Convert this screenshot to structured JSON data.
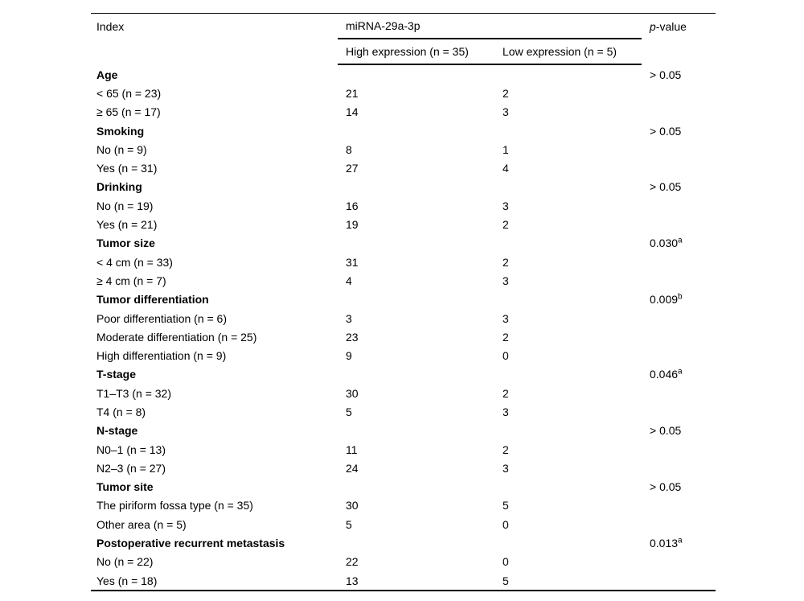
{
  "colors": {
    "background": "#ffffff",
    "text": "#000000",
    "rule": "#000000"
  },
  "table": {
    "header": {
      "index": "Index",
      "group": "miRNA-29a-3p",
      "subcols": {
        "high": "High expression (n = 35)",
        "low": "Low expression (n = 5)"
      },
      "p_italic": "p",
      "p_rest": "-value"
    },
    "rows": [
      {
        "label": "Age",
        "bold": true,
        "high": "",
        "low": "",
        "p": "> 0.05",
        "sup": ""
      },
      {
        "label": "< 65 (n = 23)",
        "bold": false,
        "high": "21",
        "low": "2",
        "p": "",
        "sup": ""
      },
      {
        "label": "≥ 65 (n = 17)",
        "bold": false,
        "high": "14",
        "low": "3",
        "p": "",
        "sup": ""
      },
      {
        "label": "Smoking",
        "bold": true,
        "high": "",
        "low": "",
        "p": "> 0.05",
        "sup": ""
      },
      {
        "label": "No (n = 9)",
        "bold": false,
        "high": "8",
        "low": "1",
        "p": "",
        "sup": ""
      },
      {
        "label": "Yes (n = 31)",
        "bold": false,
        "high": "27",
        "low": "4",
        "p": "",
        "sup": ""
      },
      {
        "label": "Drinking",
        "bold": true,
        "high": "",
        "low": "",
        "p": "> 0.05",
        "sup": ""
      },
      {
        "label": "No (n = 19)",
        "bold": false,
        "high": "16",
        "low": "3",
        "p": "",
        "sup": ""
      },
      {
        "label": "Yes (n = 21)",
        "bold": false,
        "high": "19",
        "low": "2",
        "p": "",
        "sup": ""
      },
      {
        "label": "Tumor size",
        "bold": true,
        "high": "",
        "low": "",
        "p": "0.030",
        "sup": "a"
      },
      {
        "label": "< 4 cm (n = 33)",
        "bold": false,
        "high": "31",
        "low": "2",
        "p": "",
        "sup": ""
      },
      {
        "label": "≥ 4 cm (n = 7)",
        "bold": false,
        "high": "4",
        "low": "3",
        "p": "",
        "sup": ""
      },
      {
        "label": "Tumor differentiation",
        "bold": true,
        "high": "",
        "low": "",
        "p": "0.009",
        "sup": "b"
      },
      {
        "label": "Poor differentiation (n = 6)",
        "bold": false,
        "high": "3",
        "low": "3",
        "p": "",
        "sup": ""
      },
      {
        "label": "Moderate differentiation (n = 25)",
        "bold": false,
        "high": "23",
        "low": "2",
        "p": "",
        "sup": ""
      },
      {
        "label": "High differentiation (n = 9)",
        "bold": false,
        "high": "9",
        "low": "0",
        "p": "",
        "sup": ""
      },
      {
        "label": "T-stage",
        "bold": true,
        "high": "",
        "low": "",
        "p": "0.046",
        "sup": "a"
      },
      {
        "label": "T1–T3 (n = 32)",
        "bold": false,
        "high": "30",
        "low": "2",
        "p": "",
        "sup": ""
      },
      {
        "label": "T4 (n = 8)",
        "bold": false,
        "high": "5",
        "low": "3",
        "p": "",
        "sup": ""
      },
      {
        "label": "N-stage",
        "bold": true,
        "high": "",
        "low": "",
        "p": "> 0.05",
        "sup": ""
      },
      {
        "label": "N0–1 (n = 13)",
        "bold": false,
        "high": "11",
        "low": "2",
        "p": "",
        "sup": ""
      },
      {
        "label": "N2–3 (n = 27)",
        "bold": false,
        "high": "24",
        "low": "3",
        "p": "",
        "sup": ""
      },
      {
        "label": "Tumor site",
        "bold": true,
        "high": "",
        "low": "",
        "p": "> 0.05",
        "sup": ""
      },
      {
        "label": "The piriform fossa type (n = 35)",
        "bold": false,
        "high": "30",
        "low": "5",
        "p": "",
        "sup": ""
      },
      {
        "label": "Other area (n = 5)",
        "bold": false,
        "high": "5",
        "low": "0",
        "p": "",
        "sup": ""
      },
      {
        "label": "Postoperative recurrent metastasis",
        "bold": true,
        "high": "",
        "low": "",
        "p": "0.013",
        "sup": "a"
      },
      {
        "label": "No (n = 22)",
        "bold": false,
        "high": "22",
        "low": "0",
        "p": "",
        "sup": ""
      },
      {
        "label": "Yes (n = 18)",
        "bold": false,
        "high": "13",
        "low": "5",
        "p": "",
        "sup": ""
      }
    ]
  }
}
